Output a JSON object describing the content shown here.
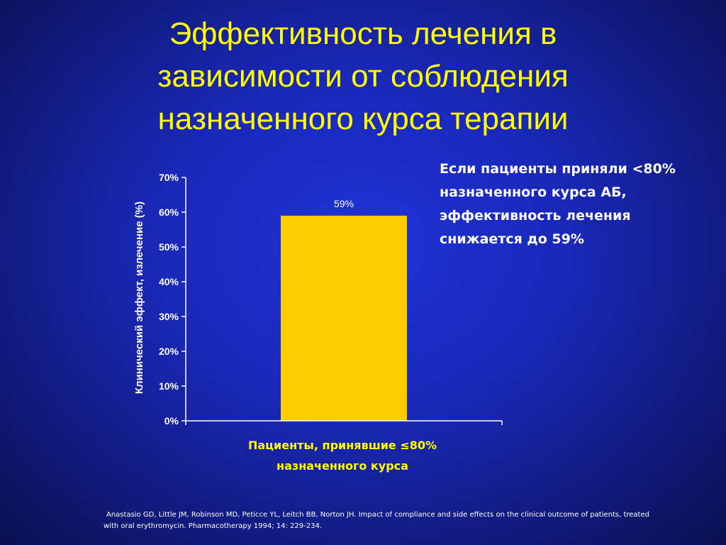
{
  "slide": {
    "title_lines": [
      "Эффективность лечения в",
      "зависимости от соблюдения",
      "назначенного курса терапии"
    ],
    "callout_lines": [
      "Если пациенты приняли <80%",
      "назначенного курса АБ,",
      "эффективность лечения",
      "снижается до 59%"
    ],
    "citation_lines": [
      "Anastasio GD, Little JM, Robinson MD, Peticce YL, Leitch BB, Norton JH. Impact of compliance and side effects on the clinical outcome of patients, treated",
      "with oral erythromycin. Pharmacotherapy 1994; 14: 229-234."
    ]
  },
  "colors": {
    "title": "#ffff00",
    "bar": "#ffcc00",
    "category_label": "#ffff00",
    "axis": "#ffffff"
  },
  "chart_data": {
    "type": "bar",
    "categories": [
      "Пациенты, принявшие ≤80%\nназначенного курса"
    ],
    "category_label_lines": [
      "Пациенты, принявшие ≤80%",
      "назначенного курса"
    ],
    "values": [
      59
    ],
    "data_labels": [
      "59%"
    ],
    "ylabel": "Клинический эффект, излечение (%)",
    "ylim": [
      0,
      70
    ],
    "yticks": [
      0,
      10,
      20,
      30,
      40,
      50,
      60,
      70
    ],
    "ytick_labels": [
      "0%",
      "10%",
      "20%",
      "30%",
      "40%",
      "50%",
      "60%",
      "70%"
    ],
    "grid": false,
    "legend": "none"
  }
}
